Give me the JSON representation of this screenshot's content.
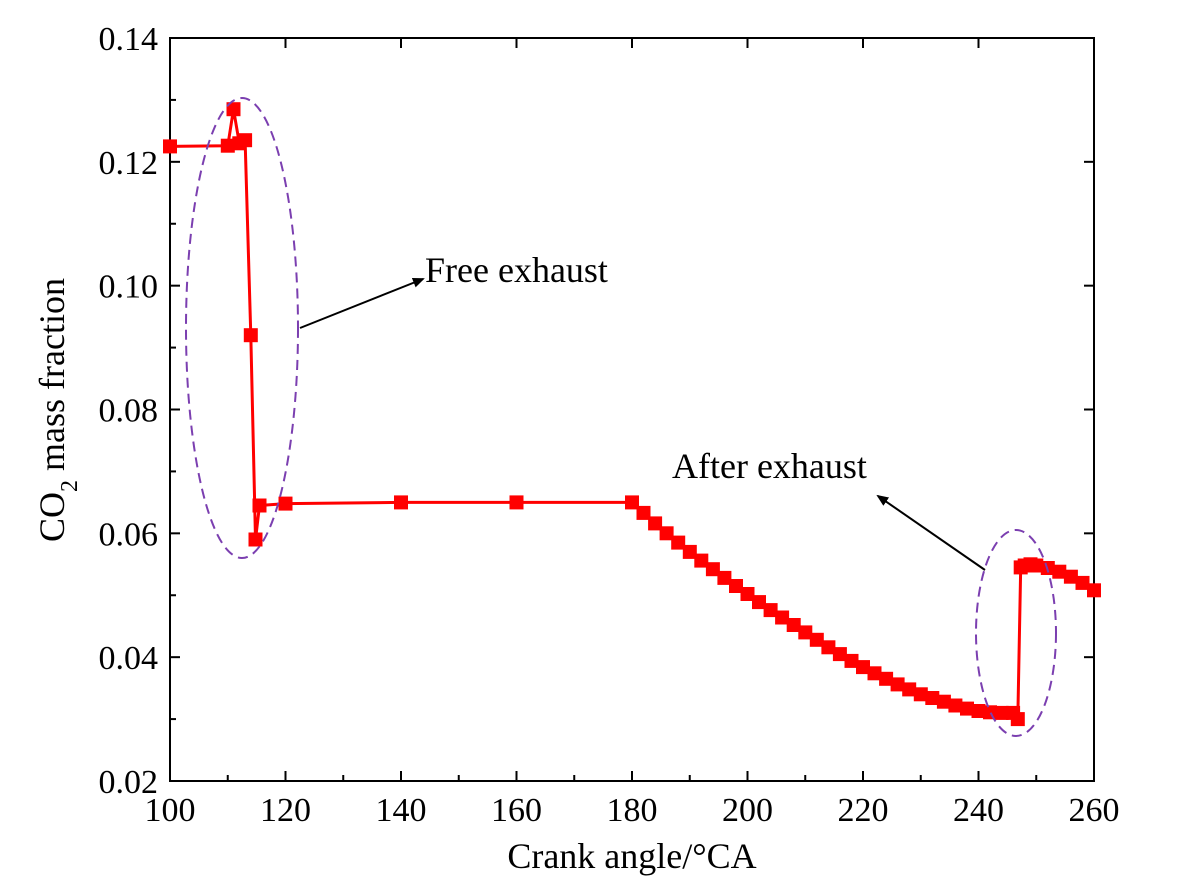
{
  "chart_data": {
    "type": "line",
    "title": "",
    "xlabel": "Crank angle/°CA",
    "ylabel": {
      "prefix": "CO",
      "subscript": "2",
      "suffix": " mass fraction"
    },
    "xlim": [
      100,
      260
    ],
    "ylim": [
      0.02,
      0.14
    ],
    "xticks": [
      100,
      120,
      140,
      160,
      180,
      200,
      220,
      240,
      260
    ],
    "yticks": [
      0.02,
      0.04,
      0.06,
      0.08,
      0.1,
      0.12,
      0.14
    ],
    "xtick_labels": [
      "100",
      "120",
      "140",
      "160",
      "180",
      "200",
      "220",
      "240",
      "260"
    ],
    "ytick_labels": [
      "0.02",
      "0.04",
      "0.06",
      "0.08",
      "0.10",
      "0.12",
      "0.14"
    ],
    "grid": false,
    "series": [
      {
        "color": "#ff0000",
        "x": [
          100,
          110,
          111,
          112,
          113,
          114,
          114.8,
          115.5,
          120,
          140,
          160,
          180,
          182,
          184,
          186,
          188,
          190,
          192,
          194,
          196,
          198,
          200,
          202,
          204,
          206,
          208,
          210,
          212,
          214,
          216,
          218,
          220,
          222,
          224,
          226,
          228,
          230,
          232,
          234,
          236,
          238,
          240,
          242,
          244,
          246,
          246.8,
          247.3,
          248,
          249,
          250,
          252,
          254,
          256,
          258,
          260
        ],
        "y": [
          0.1225,
          0.1226,
          0.1285,
          0.123,
          0.1235,
          0.092,
          0.059,
          0.0645,
          0.0648,
          0.065,
          0.065,
          0.065,
          0.0633,
          0.0616,
          0.06,
          0.0585,
          0.057,
          0.0556,
          0.0542,
          0.0528,
          0.0515,
          0.0502,
          0.0489,
          0.0476,
          0.0464,
          0.0452,
          0.044,
          0.0428,
          0.0416,
          0.0405,
          0.0394,
          0.0384,
          0.0374,
          0.0365,
          0.0356,
          0.0348,
          0.034,
          0.0334,
          0.0328,
          0.0322,
          0.0317,
          0.0313,
          0.0311,
          0.031,
          0.031,
          0.03,
          0.0545,
          0.0548,
          0.055,
          0.0548,
          0.0544,
          0.0538,
          0.053,
          0.052,
          0.0508
        ]
      }
    ],
    "annotations": [
      {
        "text": "Free exhaust",
        "color": "#000000"
      },
      {
        "text": "After exhaust",
        "color": "#000000"
      }
    ],
    "highlight_color": "#7b3fb0"
  }
}
